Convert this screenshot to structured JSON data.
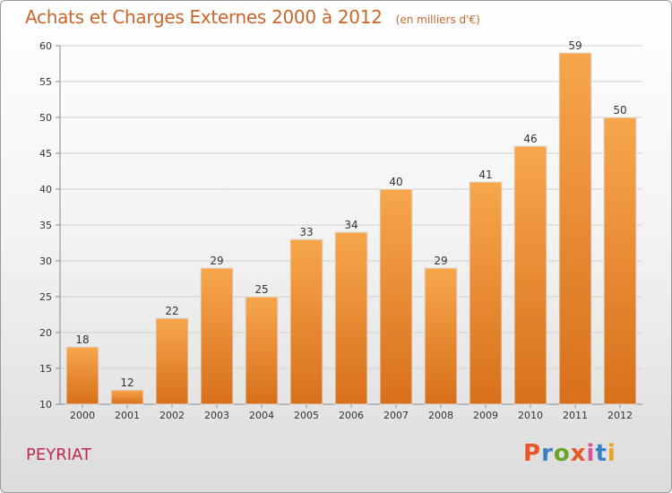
{
  "header": {
    "title": "Achats et Charges Externes 2000 à 2012",
    "subtitle": "(en milliers d'€)"
  },
  "footer": {
    "place": "PEYRIAT",
    "logo": "Proxiti",
    "logo_colors": [
      "#e8562a",
      "#3a7fc4",
      "#6aa52b",
      "#e8562a",
      "#d94f9b",
      "#3a7fc4",
      "#f0a020"
    ]
  },
  "colors": {
    "bar_light": "#f7a64c",
    "bar_dark": "#d8701c",
    "title": "#c8662b",
    "place": "#c02a4e"
  },
  "chart_data": {
    "type": "bar",
    "categories": [
      "2000",
      "2001",
      "2002",
      "2003",
      "2004",
      "2005",
      "2006",
      "2007",
      "2008",
      "2009",
      "2010",
      "2011",
      "2012"
    ],
    "values": [
      18,
      12,
      22,
      29,
      25,
      33,
      34,
      40,
      29,
      41,
      46,
      59,
      50
    ],
    "title": "Achats et Charges Externes 2000 à 2012",
    "ylim": [
      10,
      60
    ],
    "yticks": [
      10,
      15,
      20,
      25,
      30,
      35,
      40,
      45,
      50,
      55,
      60
    ],
    "grid": true,
    "legend": "none"
  }
}
